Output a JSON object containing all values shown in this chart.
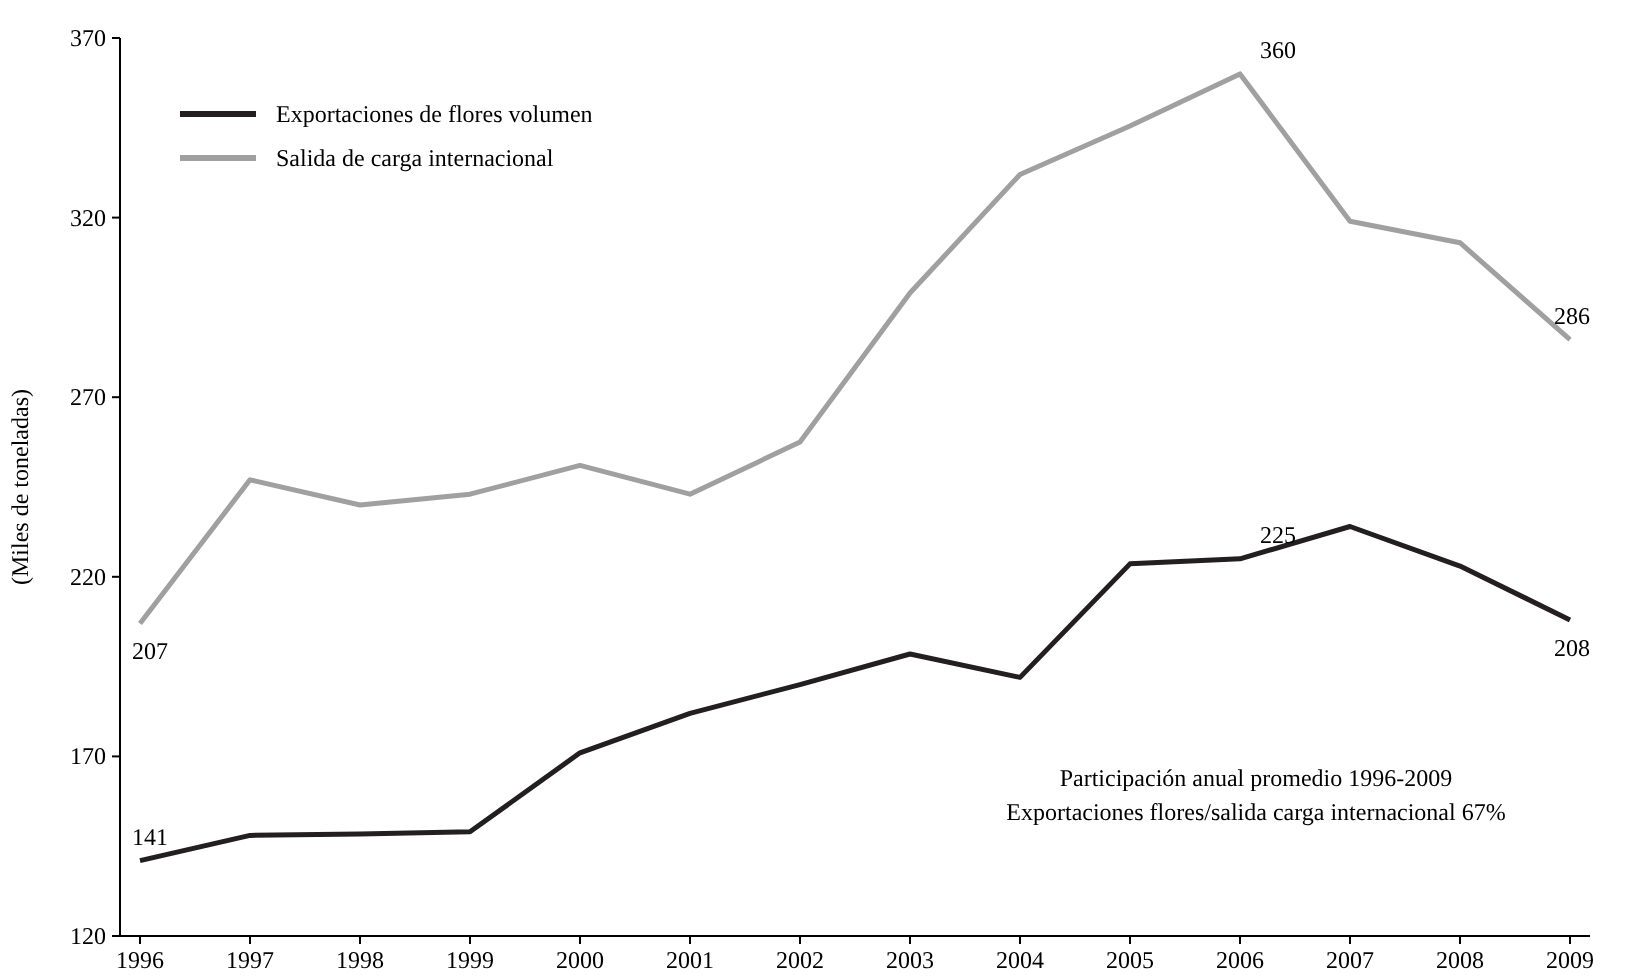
{
  "chart_data": {
    "type": "line",
    "ylabel": "(Miles de toneladas)",
    "categories": [
      "1996",
      "1997",
      "1998",
      "1999",
      "2000",
      "2001",
      "2002",
      "2003",
      "2004",
      "2005",
      "2006",
      "2007",
      "2008",
      "2009"
    ],
    "series": [
      {
        "name": "Exportaciones de flores volumen",
        "color": "#231f20",
        "values": [
          141,
          148,
          148.4,
          149,
          171,
          182,
          190,
          198.5,
          192,
          223.6,
          225,
          234,
          223,
          208
        ],
        "value_labels": [
          "141",
          null,
          null,
          null,
          null,
          null,
          null,
          null,
          null,
          null,
          "225",
          null,
          null,
          "208"
        ]
      },
      {
        "name": "Salida de carga internacional",
        "color": "#a0a0a0",
        "values": [
          207,
          247,
          240,
          243,
          251,
          243,
          257.5,
          299,
          332,
          345.5,
          360,
          319,
          313,
          286
        ],
        "value_labels": [
          "207",
          null,
          null,
          null,
          null,
          null,
          null,
          null,
          null,
          null,
          "360",
          null,
          null,
          "286"
        ]
      }
    ],
    "ylim": [
      120,
      370
    ],
    "yticks": [
      120,
      170,
      220,
      270,
      320,
      370
    ],
    "grid": false,
    "legend": "top left",
    "marker": "none",
    "line_style": "solid",
    "annotations": [
      "Participación anual promedio 1996-2009",
      "Exportaciones flores/salida carga internacional 67%"
    ]
  }
}
